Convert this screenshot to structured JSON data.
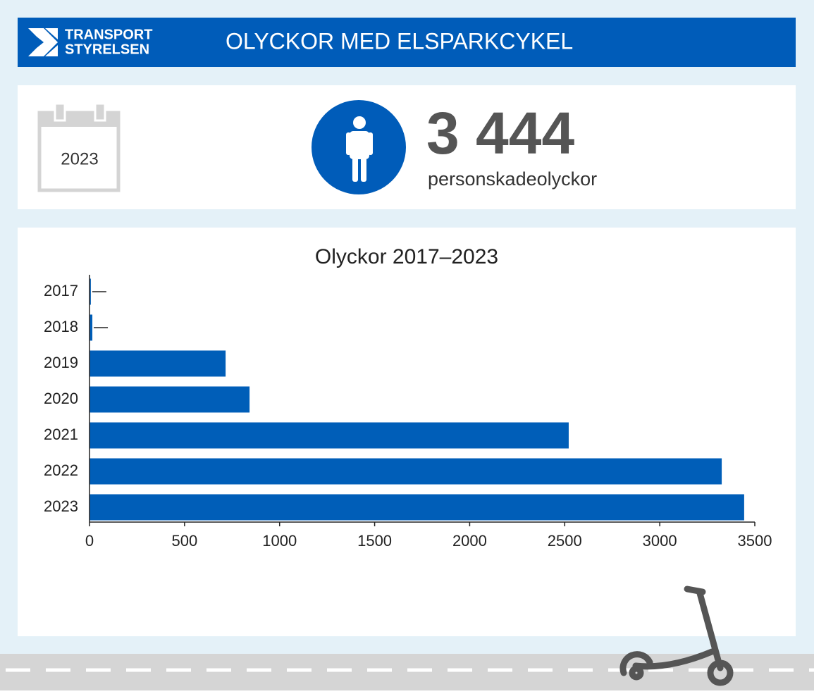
{
  "header": {
    "logo": [
      "TRANSPORT",
      "STYRELSEN"
    ],
    "title": "OLYCKOR MED ELSPARKCYKEL"
  },
  "summary": {
    "year": "2023",
    "count": "3 444",
    "label": "personskadeolyckor"
  },
  "chart_data": {
    "type": "hbar",
    "title": "Olyckor 2017–2023",
    "categories": [
      "2017",
      "2018",
      "2019",
      "2020",
      "2021",
      "2022",
      "2023"
    ],
    "values": [
      7,
      15,
      716,
      842,
      2521,
      3326,
      3444
    ],
    "color": "#005eb8",
    "xlim": [
      0,
      3500
    ],
    "xticks": [
      0,
      500,
      1000,
      1500,
      2000,
      2500,
      3000,
      3500
    ],
    "grid": false
  }
}
